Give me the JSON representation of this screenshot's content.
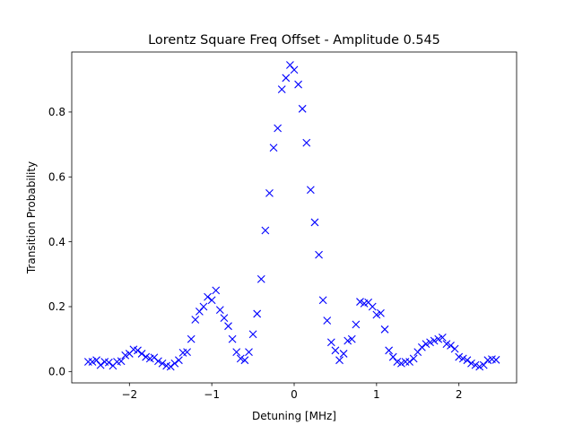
{
  "chart_data": {
    "type": "scatter",
    "title": "Lorentz Square Freq Offset - Amplitude 0.545",
    "xlabel": "Detuning [MHz]",
    "ylabel": "Transition Probability",
    "xlim": [
      -2.7,
      2.7
    ],
    "ylim": [
      -0.035,
      0.985
    ],
    "xticks": [
      -2,
      -1,
      0,
      1,
      2
    ],
    "xtick_labels": [
      "−2",
      "−1",
      "0",
      "1",
      "2"
    ],
    "yticks": [
      0.0,
      0.2,
      0.4,
      0.6,
      0.8
    ],
    "ytick_labels": [
      "0.0",
      "0.2",
      "0.4",
      "0.6",
      "0.8"
    ],
    "grid": false,
    "legend": "none",
    "marker": "x",
    "marker_color": "#0000ff",
    "series": [
      {
        "x": [
          -2.5,
          -2.45,
          -2.4,
          -2.35,
          -2.3,
          -2.25,
          -2.2,
          -2.15,
          -2.1,
          -2.05,
          -2.0,
          -1.95,
          -1.9,
          -1.85,
          -1.8,
          -1.75,
          -1.7,
          -1.65,
          -1.6,
          -1.55,
          -1.5,
          -1.45,
          -1.4,
          -1.35,
          -1.3,
          -1.25,
          -1.2,
          -1.15,
          -1.1,
          -1.05,
          -1.0,
          -0.95,
          -0.9,
          -0.85,
          -0.8,
          -0.75,
          -0.7,
          -0.65,
          -0.6,
          -0.55,
          -0.5,
          -0.45,
          -0.4,
          -0.35,
          -0.3,
          -0.25,
          -0.2,
          -0.15,
          -0.1,
          -0.05,
          0.0,
          0.05,
          0.1,
          0.15,
          0.2,
          0.25,
          0.3,
          0.35,
          0.4,
          0.45,
          0.5,
          0.55,
          0.6,
          0.65,
          0.7,
          0.75,
          0.8,
          0.85,
          0.9,
          0.95,
          1.0,
          1.05,
          1.1,
          1.15,
          1.2,
          1.25,
          1.3,
          1.35,
          1.4,
          1.45,
          1.5,
          1.55,
          1.6,
          1.65,
          1.7,
          1.75,
          1.8,
          1.85,
          1.9,
          1.95,
          2.0,
          2.05,
          2.1,
          2.15,
          2.2,
          2.25,
          2.3,
          2.35,
          2.4,
          2.45
        ],
        "y": [
          0.03,
          0.03,
          0.035,
          0.02,
          0.03,
          0.028,
          0.018,
          0.03,
          0.032,
          0.05,
          0.055,
          0.068,
          0.065,
          0.055,
          0.045,
          0.04,
          0.043,
          0.032,
          0.025,
          0.018,
          0.015,
          0.025,
          0.035,
          0.058,
          0.06,
          0.1,
          0.16,
          0.185,
          0.2,
          0.23,
          0.22,
          0.25,
          0.19,
          0.165,
          0.14,
          0.1,
          0.06,
          0.04,
          0.035,
          0.06,
          0.115,
          0.178,
          0.285,
          0.435,
          0.55,
          0.69,
          0.75,
          0.87,
          0.905,
          0.945,
          0.93,
          0.885,
          0.81,
          0.705,
          0.56,
          0.46,
          0.36,
          0.22,
          0.157,
          0.09,
          0.065,
          0.035,
          0.055,
          0.095,
          0.1,
          0.145,
          0.215,
          0.21,
          0.213,
          0.2,
          0.175,
          0.18,
          0.13,
          0.065,
          0.045,
          0.03,
          0.025,
          0.03,
          0.03,
          0.04,
          0.06,
          0.075,
          0.085,
          0.09,
          0.095,
          0.1,
          0.105,
          0.085,
          0.08,
          0.07,
          0.045,
          0.04,
          0.035,
          0.025,
          0.02,
          0.015,
          0.02,
          0.035,
          0.038,
          0.036
        ]
      }
    ]
  }
}
